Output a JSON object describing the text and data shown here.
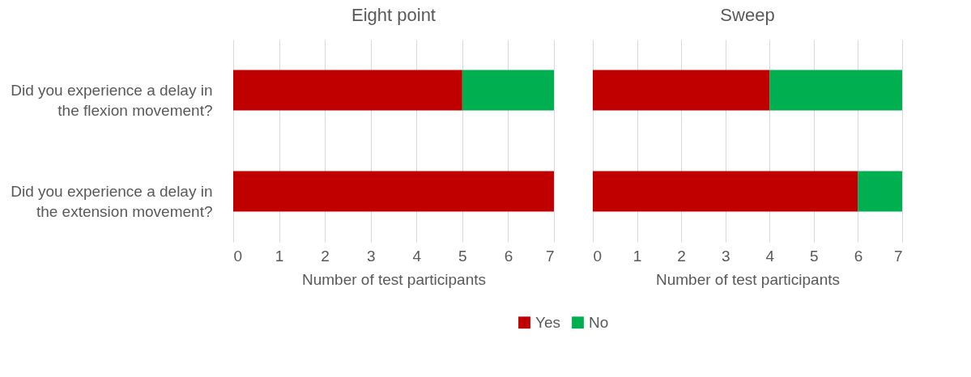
{
  "chart_data": [
    {
      "type": "bar",
      "orientation": "horizontal",
      "stacked": true,
      "title": "Eight point",
      "xlabel": "Number of test participants",
      "categories": [
        "Did you experience a delay in the flexion movement?",
        "Did you experience a delay in the extension movement?"
      ],
      "series": [
        {
          "name": "Yes",
          "color": "#c00000",
          "values": [
            5,
            7
          ]
        },
        {
          "name": "No",
          "color": "#00b050",
          "values": [
            2,
            0
          ]
        }
      ],
      "xlim": [
        0,
        7
      ],
      "xticks": [
        0,
        1,
        2,
        3,
        4,
        5,
        6,
        7
      ],
      "grid": "x",
      "legend": "bottom"
    },
    {
      "type": "bar",
      "orientation": "horizontal",
      "stacked": true,
      "title": "Sweep",
      "xlabel": "Number of test participants",
      "categories": [
        null,
        null
      ],
      "series": [
        {
          "name": "Yes",
          "color": "#c00000",
          "values": [
            4,
            6
          ]
        },
        {
          "name": "No",
          "color": "#00b050",
          "values": [
            3,
            1
          ]
        }
      ],
      "xlim": [
        0,
        7
      ],
      "xticks": [
        0,
        1,
        2,
        3,
        4,
        5,
        6,
        7
      ],
      "grid": "x",
      "legend": "bottom",
      "tick_labels": "x"
    }
  ]
}
